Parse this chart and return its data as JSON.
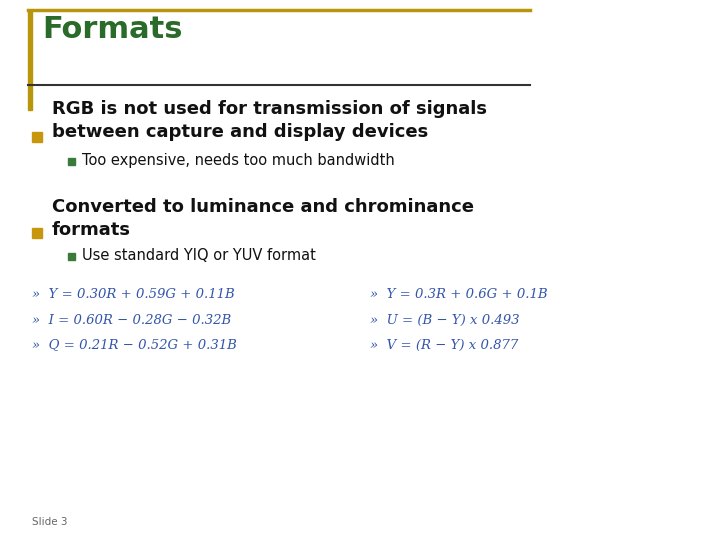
{
  "title": "Formats",
  "title_color": "#2A6B2A",
  "background_color": "#FFFFFF",
  "frame_color": "#B8960C",
  "line_color": "#333333",
  "bullet_color": "#C8960C",
  "sub_bullet_color": "#3A7A3A",
  "text_color": "#111111",
  "bullet1": "RGB is not used for transmission of signals\nbetween capture and display devices",
  "sub_bullet1": "Too expensive, needs too much bandwidth",
  "bullet2": "Converted to luminance and chrominance\nformats",
  "sub_bullet2": "Use standard YIQ or YUV format",
  "formula_color": "#3355AA",
  "formulas_left": [
    "»  Y = 0.30R + 0.59G + 0.11B",
    "»  I = 0.60R − 0.28G − 0.32B",
    "»  Q = 0.21R − 0.52G + 0.31B"
  ],
  "formulas_right": [
    "»  Y = 0.3R + 0.6G + 0.1B",
    "»  U = (B − Y) x 0.493",
    "»  V = (R − Y) x 0.877"
  ],
  "slide_label": "Slide 3",
  "slide_label_color": "#666666"
}
